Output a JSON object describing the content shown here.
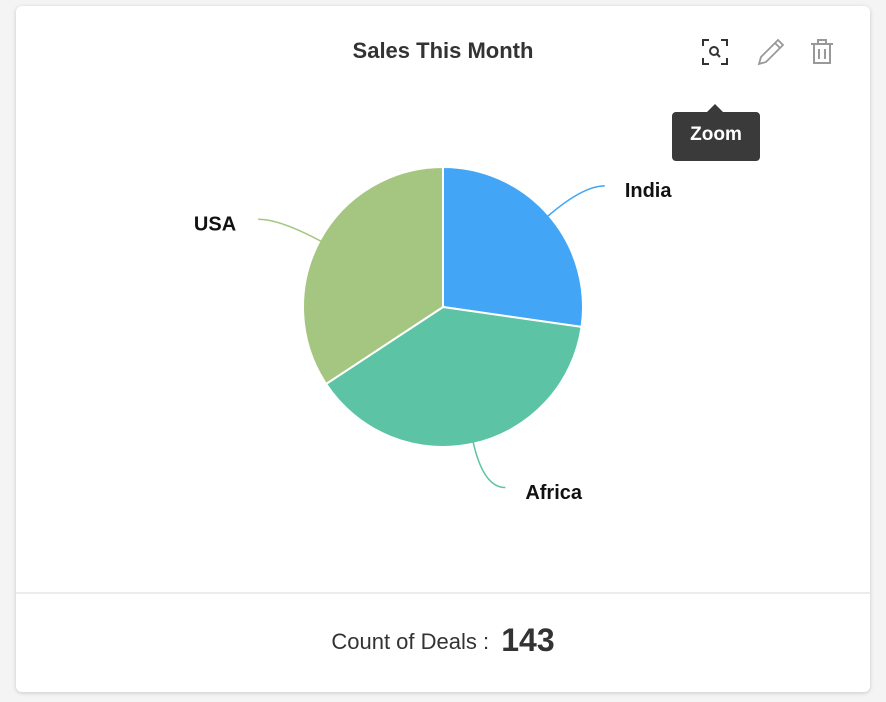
{
  "chart_data": {
    "type": "pie",
    "title": "Sales This Month",
    "categories": [
      "India",
      "Africa",
      "USA"
    ],
    "values": [
      39,
      55,
      49
    ],
    "colors": [
      "#42a5f5",
      "#5cc4a5",
      "#a5c680"
    ]
  },
  "tooltip": "Zoom",
  "footer": {
    "label": "Count of Deals :",
    "value": "143"
  }
}
